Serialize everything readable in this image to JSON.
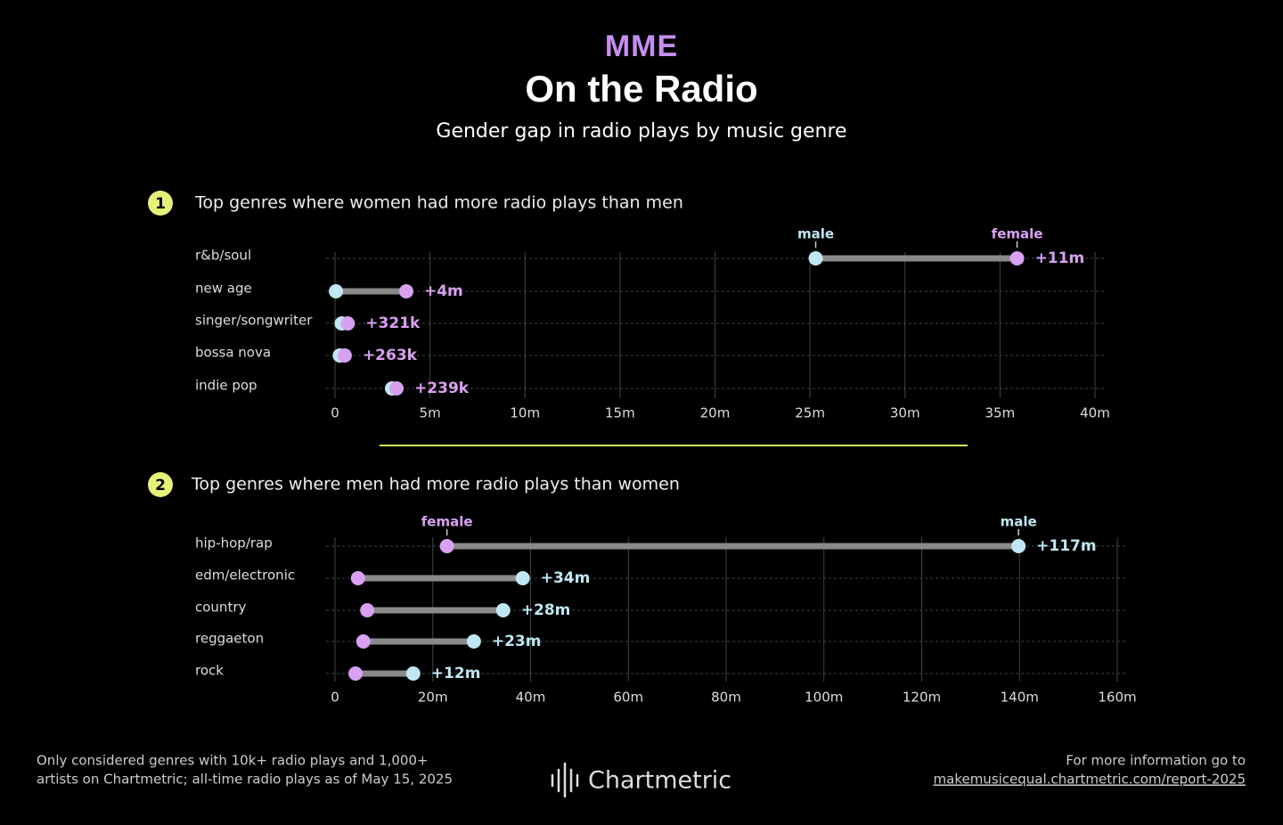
{
  "header": {
    "logo": "MME",
    "title": "On the Radio",
    "subtitle": "Gender gap in radio plays by music genre"
  },
  "chart_data": [
    {
      "type": "dumbbell",
      "section_number": "1",
      "title": "Top genres where women had more radio plays than men",
      "categories": [
        "r&b/soul",
        "new age",
        "singer/songwriter",
        "bossa nova",
        "indie pop"
      ],
      "series": [
        {
          "name": "male",
          "color": "#bfe6f3",
          "values": [
            25.3,
            0.05,
            0.35,
            0.25,
            3.0
          ]
        },
        {
          "name": "female",
          "color": "#d9a0f2",
          "values": [
            35.9,
            3.75,
            0.671,
            0.513,
            3.239
          ]
        }
      ],
      "gap_labels": [
        "+11m",
        "+4m",
        "+321k",
        "+263k",
        "+239k"
      ],
      "xlim": [
        0,
        40
      ],
      "xticks": [
        0,
        {
          "value": 5,
          "label": "5m"
        },
        {
          "value": 10,
          "label": "10m"
        },
        {
          "value": 15,
          "label": "15m"
        },
        {
          "value": 20,
          "label": "20m"
        },
        {
          "value": 25,
          "label": "25m"
        },
        {
          "value": 30,
          "label": "30m"
        },
        {
          "value": 35,
          "label": "35m"
        },
        {
          "value": 40,
          "label": "40m"
        }
      ],
      "grid": true
    },
    {
      "type": "dumbbell",
      "section_number": "2",
      "title": "Top genres where men had more radio plays than women",
      "categories": [
        "hip-hop/rap",
        "edm/electronic",
        "country",
        "reggaeton",
        "rock"
      ],
      "series": [
        {
          "name": "female",
          "color": "#d9a0f2",
          "values": [
            22.9,
            4.7,
            6.6,
            5.8,
            4.2
          ]
        },
        {
          "name": "male",
          "color": "#bfe6f3",
          "values": [
            139.8,
            38.4,
            34.4,
            28.4,
            16.0
          ]
        }
      ],
      "gap_labels": [
        "+117m",
        "+34m",
        "+28m",
        "+23m",
        "+12m"
      ],
      "xlim": [
        0,
        160
      ],
      "xticks": [
        0,
        {
          "value": 20,
          "label": "20m"
        },
        {
          "value": 40,
          "label": "40m"
        },
        {
          "value": 60,
          "label": "60m"
        },
        {
          "value": 80,
          "label": "80m"
        },
        {
          "value": 100,
          "label": "100m"
        },
        {
          "value": 120,
          "label": "120m"
        },
        {
          "value": 140,
          "label": "140m"
        },
        {
          "value": 160,
          "label": "160m"
        }
      ],
      "grid": true
    }
  ],
  "footer": {
    "note": [
      "Only considered genres with 10k+ radio plays and 1,000+",
      "artists on Chartmetric; all-time radio plays as of May 15, 2025"
    ],
    "brand": "Chartmetric",
    "more_info": "For more information go to",
    "link": "makemusicequal.chartmetric.com/report-2025"
  }
}
